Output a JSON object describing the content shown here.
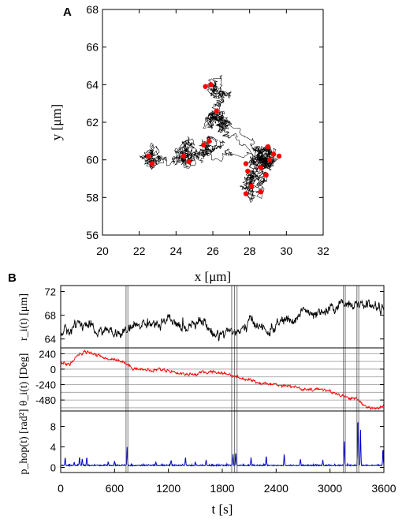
{
  "figure": {
    "panel_a": "A",
    "panel_b": "B"
  },
  "chart_data": [
    {
      "type": "scatter",
      "panel": "A",
      "xlabel": "x [μm]",
      "ylabel": "y [μm]",
      "xlim": [
        20,
        32
      ],
      "ylim": [
        56,
        68
      ],
      "xticks": [
        "20",
        "22",
        "24",
        "26",
        "28",
        "30",
        "32"
      ],
      "yticks": [
        "56",
        "58",
        "60",
        "62",
        "64",
        "66",
        "68"
      ],
      "trajectory_color": "#000000",
      "marker_color": "#ff0000",
      "cluster_centers": [
        [
          22.7,
          60.1
        ],
        [
          24.6,
          60.2
        ],
        [
          25.7,
          60.7
        ],
        [
          25.9,
          63.7
        ],
        [
          26.2,
          62.3
        ],
        [
          28.0,
          58.8
        ],
        [
          29.0,
          60.1
        ]
      ],
      "hop_points": [
        {
          "x": 22.5,
          "y": 60.2
        },
        {
          "x": 22.7,
          "y": 59.8
        },
        {
          "x": 24.4,
          "y": 60.2
        },
        {
          "x": 24.7,
          "y": 59.9
        },
        {
          "x": 25.5,
          "y": 60.8
        },
        {
          "x": 25.8,
          "y": 61.0
        },
        {
          "x": 25.6,
          "y": 63.9
        },
        {
          "x": 25.9,
          "y": 64.0
        },
        {
          "x": 26.2,
          "y": 62.6
        },
        {
          "x": 27.8,
          "y": 59.8
        },
        {
          "x": 27.9,
          "y": 59.4
        },
        {
          "x": 28.1,
          "y": 58.6
        },
        {
          "x": 27.8,
          "y": 58.2
        },
        {
          "x": 28.6,
          "y": 58.3
        },
        {
          "x": 28.6,
          "y": 59.6
        },
        {
          "x": 28.9,
          "y": 59.2
        },
        {
          "x": 29.0,
          "y": 60.7
        },
        {
          "x": 29.3,
          "y": 60.3
        },
        {
          "x": 29.6,
          "y": 60.2
        },
        {
          "x": 29.1,
          "y": 60.0
        }
      ]
    },
    {
      "type": "line",
      "panel": "B",
      "xlabel": "t [s]",
      "xlim": [
        0,
        3600
      ],
      "xticks": [
        "0",
        "600",
        "1200",
        "1800",
        "2400",
        "3000",
        "3600"
      ],
      "hop_times": [
        728,
        748,
        1905,
        1935,
        1965,
        3150,
        3170,
        3300,
        3320
      ],
      "subplots": [
        {
          "ylabel": "r_i(t) [μm]",
          "ylim": [
            62.5,
            73
          ],
          "yticks": [
            "64",
            "68",
            "72"
          ],
          "color": "#000000",
          "x": [
            0,
            100,
            200,
            300,
            400,
            500,
            600,
            700,
            800,
            900,
            1000,
            1100,
            1200,
            1300,
            1400,
            1500,
            1600,
            1700,
            1800,
            1900,
            2000,
            2100,
            2200,
            2300,
            2400,
            2500,
            2600,
            2700,
            2800,
            2900,
            3000,
            3100,
            3200,
            3300,
            3400,
            3500,
            3600
          ],
          "values": [
            65.0,
            65.5,
            66.8,
            66.3,
            65.1,
            65.6,
            64.8,
            64.9,
            66.0,
            66.5,
            66.8,
            66.2,
            67.2,
            66.4,
            65.8,
            67.2,
            66.8,
            64.7,
            65.0,
            65.5,
            64.9,
            67.0,
            66.5,
            65.0,
            66.2,
            67.4,
            66.8,
            69.2,
            67.8,
            68.2,
            68.8,
            69.8,
            70.2,
            69.5,
            70.0,
            69.4,
            69.2
          ]
        },
        {
          "ylabel": "θ_i(t) [Deg]",
          "ylim": [
            -650,
            330
          ],
          "yticks": [
            "240",
            "0",
            "-240",
            "-480"
          ],
          "color": "#ff0000",
          "gridlines": [
            240,
            120,
            0,
            -120,
            -240,
            -360,
            -480,
            -600
          ],
          "x": [
            0,
            100,
            200,
            300,
            400,
            500,
            600,
            700,
            800,
            900,
            1000,
            1100,
            1200,
            1300,
            1400,
            1500,
            1600,
            1700,
            1800,
            1900,
            2000,
            2100,
            2200,
            2300,
            2400,
            2500,
            2600,
            2700,
            2800,
            2900,
            3000,
            3100,
            3200,
            3300,
            3400,
            3500,
            3600
          ],
          "values": [
            90,
            70,
            220,
            280,
            220,
            160,
            160,
            110,
            20,
            0,
            -30,
            0,
            -20,
            -60,
            -80,
            -80,
            -50,
            -40,
            -60,
            -90,
            -140,
            -160,
            -210,
            -230,
            -240,
            -250,
            -270,
            -320,
            -330,
            -300,
            -350,
            -390,
            -440,
            -470,
            -580,
            -620,
            -570
          ]
        },
        {
          "ylabel": "p_hop(t) [rad²]",
          "ylim": [
            -1,
            11
          ],
          "yticks": [
            "0",
            "4",
            "8"
          ],
          "color": "#0000cc",
          "baseline": 0.3,
          "peaks": [
            {
              "t": 50,
              "v": 1.6
            },
            {
              "t": 150,
              "v": 0.7
            },
            {
              "t": 210,
              "v": 1.7
            },
            {
              "t": 240,
              "v": 1.3
            },
            {
              "t": 290,
              "v": 1.7
            },
            {
              "t": 530,
              "v": 0.7
            },
            {
              "t": 600,
              "v": 0.9
            },
            {
              "t": 740,
              "v": 3.4
            },
            {
              "t": 1060,
              "v": 0.7
            },
            {
              "t": 1230,
              "v": 1.1
            },
            {
              "t": 1390,
              "v": 1.6
            },
            {
              "t": 1500,
              "v": 0.7
            },
            {
              "t": 1620,
              "v": 1.1
            },
            {
              "t": 1920,
              "v": 2.2
            },
            {
              "t": 1950,
              "v": 2.6
            },
            {
              "t": 2120,
              "v": 1.5
            },
            {
              "t": 2290,
              "v": 2.0
            },
            {
              "t": 2490,
              "v": 2.2
            },
            {
              "t": 2670,
              "v": 1.3
            },
            {
              "t": 2920,
              "v": 1.1
            },
            {
              "t": 3160,
              "v": 4.6
            },
            {
              "t": 3310,
              "v": 9.8
            },
            {
              "t": 3340,
              "v": 7.0
            },
            {
              "t": 3590,
              "v": 3.4
            }
          ]
        }
      ]
    }
  ]
}
